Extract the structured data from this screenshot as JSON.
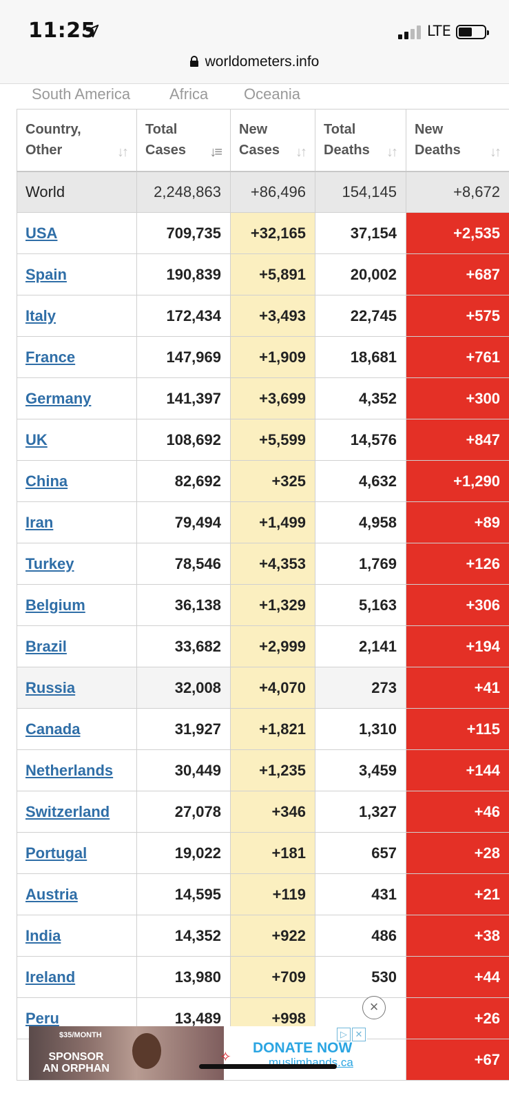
{
  "status_bar": {
    "time": "11:25",
    "network": "LTE",
    "url": "worldometers.info"
  },
  "regions": [
    "South America",
    "Africa",
    "Oceania"
  ],
  "table": {
    "headers": [
      {
        "line1": "Country,",
        "line2": "Other"
      },
      {
        "line1": "Total",
        "line2": "Cases"
      },
      {
        "line1": "New",
        "line2": "Cases"
      },
      {
        "line1": "Total",
        "line2": "Deaths"
      },
      {
        "line1": "New",
        "line2": "Deaths"
      }
    ],
    "world": {
      "country": "World",
      "total_cases": "2,248,863",
      "new_cases": "+86,496",
      "total_deaths": "154,145",
      "new_deaths": "+8,672"
    },
    "rows": [
      {
        "country": "USA",
        "total_cases": "709,735",
        "new_cases": "+32,165",
        "total_deaths": "37,154",
        "new_deaths": "+2,535"
      },
      {
        "country": "Spain",
        "total_cases": "190,839",
        "new_cases": "+5,891",
        "total_deaths": "20,002",
        "new_deaths": "+687"
      },
      {
        "country": "Italy",
        "total_cases": "172,434",
        "new_cases": "+3,493",
        "total_deaths": "22,745",
        "new_deaths": "+575"
      },
      {
        "country": "France",
        "total_cases": "147,969",
        "new_cases": "+1,909",
        "total_deaths": "18,681",
        "new_deaths": "+761"
      },
      {
        "country": "Germany",
        "total_cases": "141,397",
        "new_cases": "+3,699",
        "total_deaths": "4,352",
        "new_deaths": "+300"
      },
      {
        "country": "UK",
        "total_cases": "108,692",
        "new_cases": "+5,599",
        "total_deaths": "14,576",
        "new_deaths": "+847"
      },
      {
        "country": "China",
        "total_cases": "82,692",
        "new_cases": "+325",
        "total_deaths": "4,632",
        "new_deaths": "+1,290"
      },
      {
        "country": "Iran",
        "total_cases": "79,494",
        "new_cases": "+1,499",
        "total_deaths": "4,958",
        "new_deaths": "+89"
      },
      {
        "country": "Turkey",
        "total_cases": "78,546",
        "new_cases": "+4,353",
        "total_deaths": "1,769",
        "new_deaths": "+126"
      },
      {
        "country": "Belgium",
        "total_cases": "36,138",
        "new_cases": "+1,329",
        "total_deaths": "5,163",
        "new_deaths": "+306"
      },
      {
        "country": "Brazil",
        "total_cases": "33,682",
        "new_cases": "+2,999",
        "total_deaths": "2,141",
        "new_deaths": "+194"
      },
      {
        "country": "Russia",
        "total_cases": "32,008",
        "new_cases": "+4,070",
        "total_deaths": "273",
        "new_deaths": "+41"
      },
      {
        "country": "Canada",
        "total_cases": "31,927",
        "new_cases": "+1,821",
        "total_deaths": "1,310",
        "new_deaths": "+115"
      },
      {
        "country": "Netherlands",
        "total_cases": "30,449",
        "new_cases": "+1,235",
        "total_deaths": "3,459",
        "new_deaths": "+144"
      },
      {
        "country": "Switzerland",
        "total_cases": "27,078",
        "new_cases": "+346",
        "total_deaths": "1,327",
        "new_deaths": "+46"
      },
      {
        "country": "Portugal",
        "total_cases": "19,022",
        "new_cases": "+181",
        "total_deaths": "657",
        "new_deaths": "+28"
      },
      {
        "country": "Austria",
        "total_cases": "14,595",
        "new_cases": "+119",
        "total_deaths": "431",
        "new_deaths": "+21"
      },
      {
        "country": "India",
        "total_cases": "14,352",
        "new_cases": "+922",
        "total_deaths": "486",
        "new_deaths": "+38"
      },
      {
        "country": "Ireland",
        "total_cases": "13,980",
        "new_cases": "+709",
        "total_deaths": "530",
        "new_deaths": "+44"
      },
      {
        "country": "Peru",
        "total_cases": "13,489",
        "new_cases": "+998",
        "total_deaths": "",
        "new_deaths": "+26"
      },
      {
        "country": "",
        "total_cases": "",
        "new_cases": "",
        "total_deaths": "",
        "new_deaths": "+67"
      }
    ],
    "highlighted_row": "Russia"
  },
  "ad": {
    "price": "$35/MONTH",
    "line1": "SPONSOR",
    "line2": "AN ORPHAN",
    "cta": "DONATE NOW",
    "site": "muslimhands.ca",
    "close_icon": "circle-x-icon"
  },
  "colors": {
    "new_cases_bg": "#fbefc0",
    "new_deaths_bg": "#e43026",
    "link": "#2f6ea7",
    "world_bg": "#e8e8e8"
  }
}
